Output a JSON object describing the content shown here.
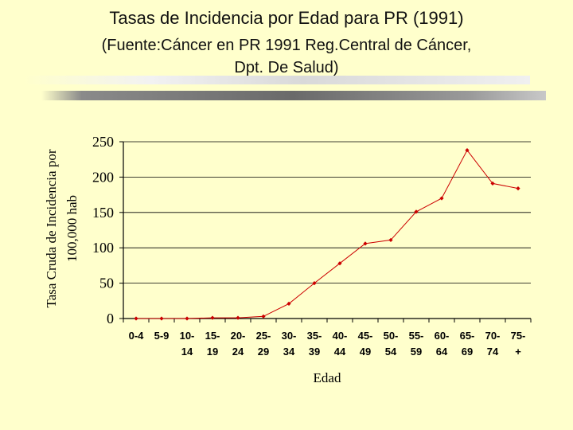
{
  "slide": {
    "title": "Tasas de Incidencia por Edad para PR (1991)",
    "subtitle_line1": "(Fuente:Cáncer en PR 1991 Reg.Central de Cáncer,",
    "subtitle_line2": "Dpt. De Salud)"
  },
  "chart_data": {
    "type": "line",
    "xlabel": "Edad",
    "ylabel_line1": "Tasa Cruda de Incidencia por",
    "ylabel_line2": "100,000 hab",
    "ylim": [
      0,
      250
    ],
    "yticks": [
      0,
      50,
      100,
      150,
      200,
      250
    ],
    "grid": "horizontal",
    "categories": [
      [
        "0-4",
        ""
      ],
      [
        "5-9",
        ""
      ],
      [
        "10-",
        "14"
      ],
      [
        "15-",
        "19"
      ],
      [
        "20-",
        "24"
      ],
      [
        "25-",
        "29"
      ],
      [
        "30-",
        "34"
      ],
      [
        "35-",
        "39"
      ],
      [
        "40-",
        "44"
      ],
      [
        "45-",
        "49"
      ],
      [
        "50-",
        "54"
      ],
      [
        "55-",
        "59"
      ],
      [
        "60-",
        "64"
      ],
      [
        "65-",
        "69"
      ],
      [
        "70-",
        "74"
      ],
      [
        "75-",
        "+"
      ]
    ],
    "values": [
      0,
      0,
      0,
      1,
      1,
      3,
      21,
      50,
      78,
      106,
      111,
      151,
      170,
      238,
      191,
      184
    ],
    "line_color": "#cc0000"
  }
}
